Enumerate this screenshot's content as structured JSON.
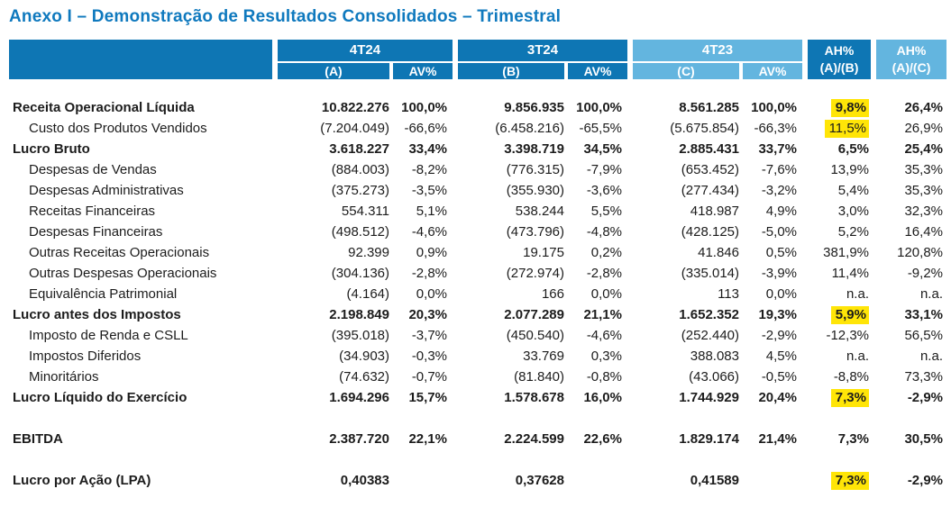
{
  "title": "Anexo I – Demonstração de Resultados Consolidados – Trimestral",
  "colors": {
    "header_dark_blue": "#0e76b4",
    "header_light_blue": "#63b5df",
    "title_blue": "#0f79be",
    "highlight_yellow": "#ffe507"
  },
  "table": {
    "groups": [
      {
        "label": "4T24",
        "sub_value": "(A)",
        "sub_av": "AV%",
        "tone": "dark"
      },
      {
        "label": "3T24",
        "sub_value": "(B)",
        "sub_av": "AV%",
        "tone": "dark"
      },
      {
        "label": "4T23",
        "sub_value": "(C)",
        "sub_av": "AV%",
        "tone": "light"
      }
    ],
    "ah_columns": [
      {
        "line1": "AH%",
        "line2": "(A)/(B)",
        "tone": "dark"
      },
      {
        "line1": "AH%",
        "line2": "(A)/(C)",
        "tone": "light"
      }
    ],
    "rows": [
      {
        "label": "Receita Operacional Líquida",
        "total": true,
        "values": [
          "10.822.276",
          "100,0%",
          "9.856.935",
          "100,0%",
          "8.561.285",
          "100,0%",
          "9,8%",
          "26,4%"
        ],
        "highlight": [
          6
        ]
      },
      {
        "label": "Custo dos Produtos Vendidos",
        "total": false,
        "values": [
          "(7.204.049)",
          "-66,6%",
          "(6.458.216)",
          "-65,5%",
          "(5.675.854)",
          "-66,3%",
          "11,5%",
          "26,9%"
        ],
        "highlight": [
          6
        ]
      },
      {
        "label": "Lucro Bruto",
        "total": true,
        "values": [
          "3.618.227",
          "33,4%",
          "3.398.719",
          "34,5%",
          "2.885.431",
          "33,7%",
          "6,5%",
          "25,4%"
        ],
        "highlight": []
      },
      {
        "label": "Despesas de Vendas",
        "total": false,
        "values": [
          "(884.003)",
          "-8,2%",
          "(776.315)",
          "-7,9%",
          "(653.452)",
          "-7,6%",
          "13,9%",
          "35,3%"
        ],
        "highlight": []
      },
      {
        "label": "Despesas Administrativas",
        "total": false,
        "values": [
          "(375.273)",
          "-3,5%",
          "(355.930)",
          "-3,6%",
          "(277.434)",
          "-3,2%",
          "5,4%",
          "35,3%"
        ],
        "highlight": []
      },
      {
        "label": "Receitas Financeiras",
        "total": false,
        "values": [
          "554.311",
          "5,1%",
          "538.244",
          "5,5%",
          "418.987",
          "4,9%",
          "3,0%",
          "32,3%"
        ],
        "highlight": []
      },
      {
        "label": "Despesas Financeiras",
        "total": false,
        "values": [
          "(498.512)",
          "-4,6%",
          "(473.796)",
          "-4,8%",
          "(428.125)",
          "-5,0%",
          "5,2%",
          "16,4%"
        ],
        "highlight": []
      },
      {
        "label": "Outras Receitas Operacionais",
        "total": false,
        "values": [
          "92.399",
          "0,9%",
          "19.175",
          "0,2%",
          "41.846",
          "0,5%",
          "381,9%",
          "120,8%"
        ],
        "highlight": []
      },
      {
        "label": "Outras Despesas Operacionais",
        "total": false,
        "values": [
          "(304.136)",
          "-2,8%",
          "(272.974)",
          "-2,8%",
          "(335.014)",
          "-3,9%",
          "11,4%",
          "-9,2%"
        ],
        "highlight": []
      },
      {
        "label": "Equivalência Patrimonial",
        "total": false,
        "values": [
          "(4.164)",
          "0,0%",
          "166",
          "0,0%",
          "113",
          "0,0%",
          "n.a.",
          "n.a."
        ],
        "highlight": []
      },
      {
        "label": "Lucro antes dos Impostos",
        "total": true,
        "values": [
          "2.198.849",
          "20,3%",
          "2.077.289",
          "21,1%",
          "1.652.352",
          "19,3%",
          "5,9%",
          "33,1%"
        ],
        "highlight": [
          6
        ]
      },
      {
        "label": "Imposto de Renda e CSLL",
        "total": false,
        "values": [
          "(395.018)",
          "-3,7%",
          "(450.540)",
          "-4,6%",
          "(252.440)",
          "-2,9%",
          "-12,3%",
          "56,5%"
        ],
        "highlight": []
      },
      {
        "label": "Impostos Diferidos",
        "total": false,
        "values": [
          "(34.903)",
          "-0,3%",
          "33.769",
          "0,3%",
          "388.083",
          "4,5%",
          "n.a.",
          "n.a."
        ],
        "highlight": []
      },
      {
        "label": "Minoritários",
        "total": false,
        "values": [
          "(74.632)",
          "-0,7%",
          "(81.840)",
          "-0,8%",
          "(43.066)",
          "-0,5%",
          "-8,8%",
          "73,3%"
        ],
        "highlight": []
      },
      {
        "label": "Lucro Líquido do Exercício",
        "total": true,
        "values": [
          "1.694.296",
          "15,7%",
          "1.578.678",
          "16,0%",
          "1.744.929",
          "20,4%",
          "7,3%",
          "-2,9%"
        ],
        "highlight": [
          6
        ]
      },
      {
        "spacer": true
      },
      {
        "label": "EBITDA",
        "total": true,
        "values": [
          "2.387.720",
          "22,1%",
          "2.224.599",
          "22,6%",
          "1.829.174",
          "21,4%",
          "7,3%",
          "30,5%"
        ],
        "highlight": []
      },
      {
        "spacer": true
      },
      {
        "label": "Lucro por Ação (LPA)",
        "total": true,
        "values": [
          "0,40383",
          "",
          "0,37628",
          "",
          "0,41589",
          "",
          "7,3%",
          "-2,9%"
        ],
        "highlight": [
          6
        ]
      }
    ]
  }
}
